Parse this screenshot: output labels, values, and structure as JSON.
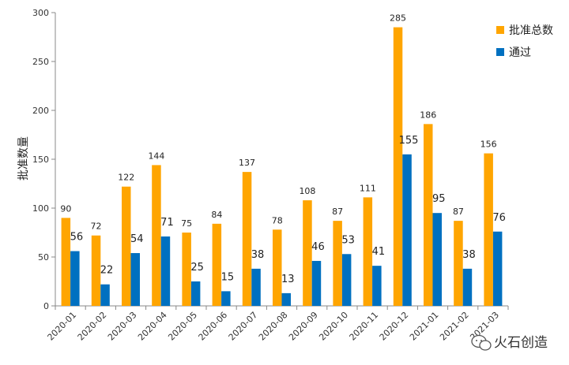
{
  "chart_data": {
    "type": "bar",
    "title": "",
    "xlabel": "",
    "ylabel": "批准数量",
    "ylim": [
      0,
      300
    ],
    "yticks": [
      0,
      50,
      100,
      150,
      200,
      250,
      300
    ],
    "legend_position": "top-right",
    "categories": [
      "2020-01",
      "2020-02",
      "2020-03",
      "2020-04",
      "2020-05",
      "2020-06",
      "2020-07",
      "2020-08",
      "2020-09",
      "2020-10",
      "2020-11",
      "2020-12",
      "2021-01",
      "2021-02",
      "2021-03"
    ],
    "series": [
      {
        "name": "批准总数",
        "color": "#FFA500",
        "values": [
          90,
          72,
          122,
          144,
          75,
          84,
          137,
          78,
          108,
          87,
          111,
          285,
          186,
          87,
          156
        ]
      },
      {
        "name": "通过",
        "color": "#0070C0",
        "values": [
          56,
          22,
          54,
          71,
          25,
          15,
          38,
          13,
          46,
          53,
          41,
          155,
          95,
          38,
          76
        ]
      }
    ]
  },
  "watermark": {
    "text": "火石创造",
    "icon": "wechat-bubble-icon"
  }
}
